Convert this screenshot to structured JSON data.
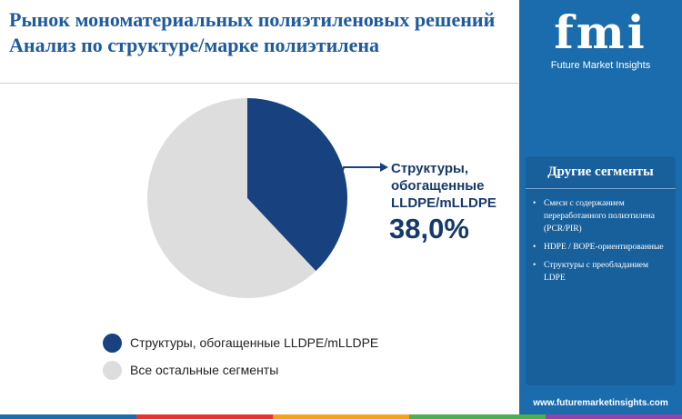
{
  "title": "Рынок мономатериальных полиэтиленовых решений Анализ по структуре/марке полиэтилена",
  "chart_data": {
    "type": "pie",
    "segments": [
      {
        "label": "Структуры, обогащенные LLDPE/mLLDPE",
        "value": 38.0,
        "color": "#17427f"
      },
      {
        "label": "Все остальные сегменты",
        "value": 62.0,
        "color": "#dddddd"
      }
    ],
    "callout": {
      "label": "Структуры, обогащенные LLDPE/mLLDPE",
      "value": "38,0%"
    }
  },
  "legend": [
    {
      "label": "Структуры, обогащенные LLDPE/mLLDPE",
      "color": "#17427f"
    },
    {
      "label": "Все остальные сегменты",
      "color": "#dddddd"
    }
  ],
  "sidebar": {
    "logo_text": "fmi",
    "logo_subtitle": "Future Market Insights",
    "other_title": "Другие сегменты",
    "other_items": [
      "Смеси с содержанием переработанного полиэтилена (PCR/PIR)",
      "HDPE / BOPE-ориентированные",
      "Структуры с преобладанием LDPE"
    ],
    "website": "www.futuremarketinsights.com"
  },
  "bottom_bar_colors": [
    "#1a6cad",
    "#e8322e",
    "#f2a21b",
    "#4caf50",
    "#8e44ad"
  ]
}
